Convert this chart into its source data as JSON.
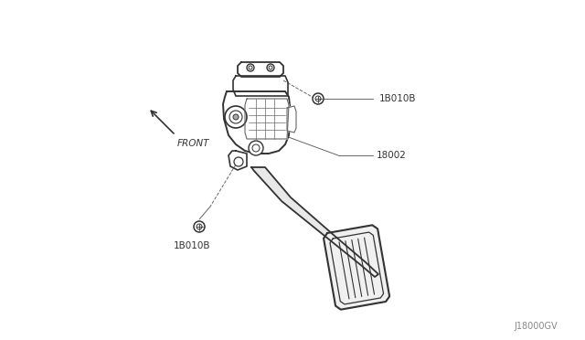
{
  "bg_color": "#ffffff",
  "line_color": "#666666",
  "dark_line": "#333333",
  "watermark": "J18000GV",
  "labels": {
    "18010B_top": "1B010B",
    "18002": "18002",
    "18010B_bot": "1B010B",
    "front": "FRONT"
  },
  "label_fontsize": 7.5,
  "front_fontsize": 7.5,
  "watermark_fontsize": 7
}
